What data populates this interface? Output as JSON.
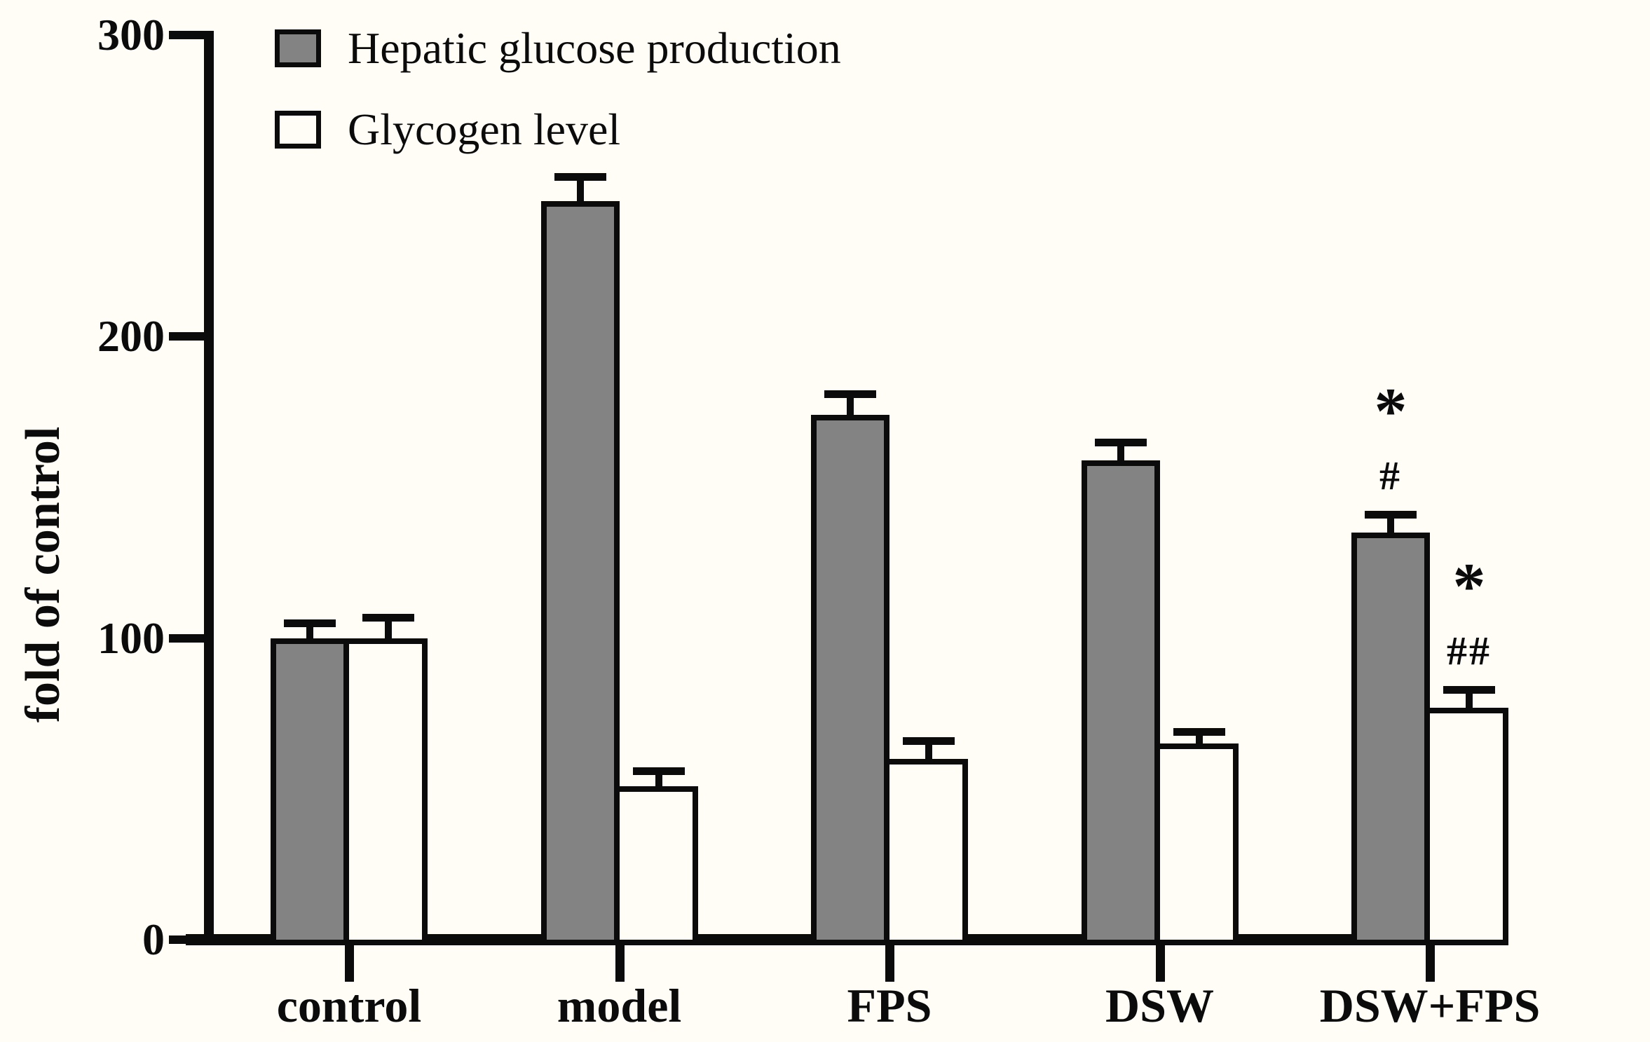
{
  "figure": {
    "background": "#fffdf6",
    "axis_color": "#0b0b0b"
  },
  "chart_data": {
    "type": "bar",
    "title": "",
    "xlabel": "",
    "ylabel": "fold of control",
    "ylim": [
      0,
      300
    ],
    "yticks": [
      0,
      100,
      200,
      300
    ],
    "grid": false,
    "legend_position": "top-left",
    "error_bars": "upper whiskers with caps (SEM)",
    "categories": [
      "control",
      "model",
      "FPS",
      "DSW",
      "DSW+FPS"
    ],
    "series": [
      {
        "name": "Hepatic glucose production",
        "fill": "#838383",
        "outline": "#0b0b0b",
        "values": [
          100,
          245,
          174,
          159,
          135
        ],
        "errors": [
          5,
          8,
          7,
          6,
          6
        ],
        "annotations": [
          [],
          [],
          [],
          [],
          [
            "#",
            "*"
          ]
        ]
      },
      {
        "name": "Glycogen level",
        "fill": "#fffdf6",
        "outline": "#0b0b0b",
        "values": [
          100,
          51,
          60,
          65,
          77
        ],
        "errors": [
          7,
          5,
          6,
          4,
          6
        ],
        "annotations": [
          [],
          [],
          [],
          [],
          [
            "##",
            "*"
          ]
        ]
      }
    ]
  }
}
